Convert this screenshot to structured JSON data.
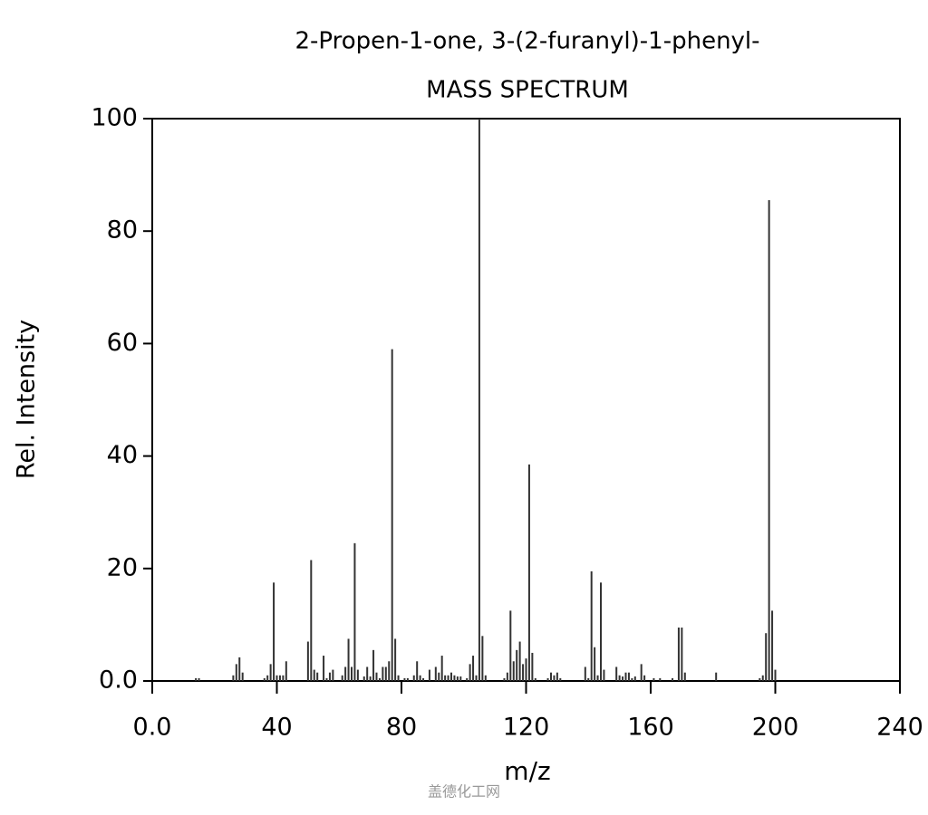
{
  "chart_data": {
    "type": "bar",
    "title": "2-Propen-1-one, 3-(2-furanyl)-1-phenyl-",
    "subtitle": "MASS SPECTRUM",
    "x_label": "m/z",
    "y_label": "Rel. Intensity",
    "watermark": "盖德化工网",
    "color": "#333333",
    "x": [
      14,
      15,
      26,
      27,
      28,
      29,
      36,
      37,
      38,
      39,
      40,
      41,
      42,
      43,
      50,
      51,
      52,
      53,
      55,
      56,
      57,
      58,
      61,
      62,
      63,
      64,
      65,
      66,
      68,
      69,
      70,
      71,
      72,
      73,
      74,
      75,
      76,
      77,
      78,
      79,
      81,
      82,
      84,
      85,
      86,
      87,
      89,
      91,
      92,
      93,
      94,
      95,
      96,
      97,
      98,
      99,
      101,
      102,
      103,
      104,
      105,
      106,
      107,
      113,
      114,
      115,
      116,
      117,
      118,
      119,
      120,
      121,
      122,
      123,
      127,
      128,
      129,
      130,
      131,
      139,
      140,
      141,
      142,
      143,
      144,
      145,
      149,
      150,
      151,
      152,
      153,
      154,
      155,
      157,
      158,
      161,
      163,
      167,
      169,
      170,
      171,
      181,
      195,
      196,
      197,
      198,
      199,
      200
    ],
    "values": [
      0.5,
      0.5,
      1,
      3,
      4.2,
      1.5,
      0.5,
      1,
      3,
      17.5,
      1,
      1,
      1,
      3.5,
      7,
      21.5,
      2,
      1.5,
      4.5,
      0.5,
      1.5,
      2,
      1,
      2.5,
      7.5,
      2.5,
      24.5,
      2,
      0.8,
      2.5,
      0.8,
      5.5,
      1.5,
      0.5,
      2.5,
      2.5,
      3.5,
      59,
      7.5,
      1,
      0.5,
      0.5,
      1,
      3.5,
      1,
      0.5,
      2,
      2.5,
      1.5,
      4.5,
      1,
      1,
      1.5,
      1,
      0.8,
      0.8,
      0.5,
      3,
      4.5,
      1,
      100,
      8,
      1,
      0.5,
      1.5,
      12.5,
      3.5,
      5.5,
      7,
      3,
      4,
      38.5,
      5,
      0.5,
      0.5,
      1.5,
      1,
      1.5,
      0.5,
      2.5,
      0.5,
      19.5,
      6,
      1,
      17.5,
      2,
      2.5,
      1,
      0.8,
      1.5,
      1.5,
      0.5,
      0.8,
      3,
      1,
      0.5,
      0.5,
      0.5,
      9.5,
      9.5,
      1.5,
      1.5,
      0.5,
      1,
      8.5,
      85.5,
      12.5,
      2
    ],
    "xlim": [
      0,
      240
    ],
    "xticks": [
      {
        "value": 0,
        "label": "0.0"
      },
      40,
      80,
      120,
      160,
      200,
      240
    ],
    "ylim": [
      0,
      100
    ],
    "yticks": [
      {
        "value": 0,
        "label": "0.0"
      },
      20,
      40,
      60,
      80,
      100
    ]
  }
}
